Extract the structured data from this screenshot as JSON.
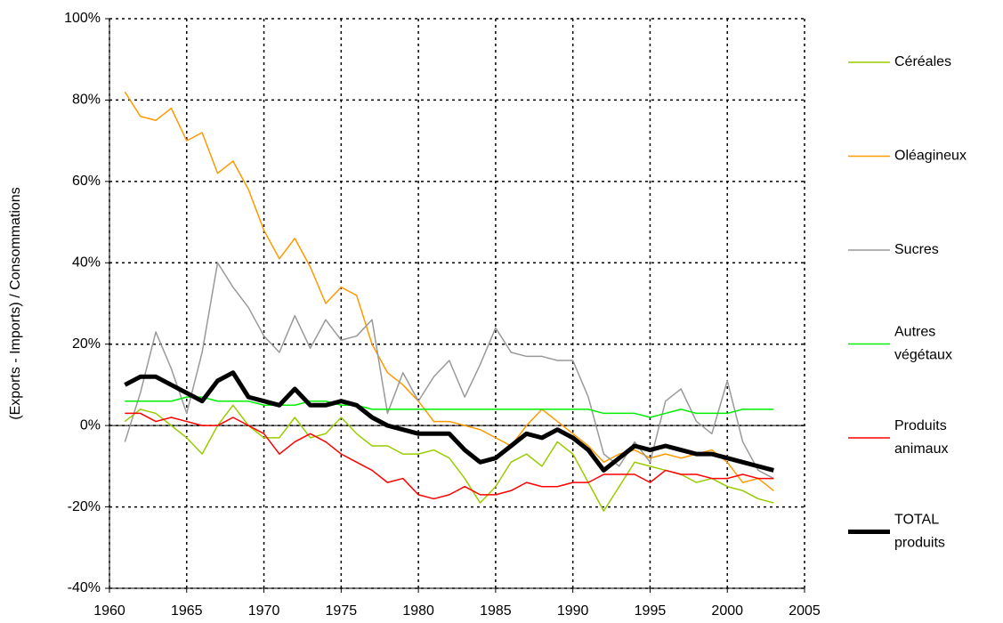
{
  "chart_data": {
    "type": "line",
    "y_label": "(Exports - Imports) / Consommations",
    "x": [
      1961,
      1962,
      1963,
      1964,
      1965,
      1966,
      1967,
      1968,
      1969,
      1970,
      1971,
      1972,
      1973,
      1974,
      1975,
      1976,
      1977,
      1978,
      1979,
      1980,
      1981,
      1982,
      1983,
      1984,
      1985,
      1986,
      1987,
      1988,
      1989,
      1990,
      1991,
      1992,
      1993,
      1994,
      1995,
      1996,
      1997,
      1998,
      1999,
      2000,
      2001,
      2002,
      2003
    ],
    "series": [
      {
        "name": "Céréales",
        "color": "#99cc00",
        "width": 1.5,
        "values": [
          1,
          4,
          3,
          0,
          -3,
          -7,
          0,
          5,
          0,
          -3,
          -3,
          2,
          -3,
          -2,
          2,
          -2,
          -5,
          -5,
          -7,
          -7,
          -6,
          -8,
          -13,
          -19,
          -15,
          -9,
          -7,
          -10,
          -4,
          -7,
          -14,
          -21,
          -15,
          -9,
          -10,
          -11,
          -12,
          -14,
          -13,
          -15,
          -16,
          -18,
          -19
        ]
      },
      {
        "name": "Oléagineux",
        "color": "#ff9900",
        "width": 1.5,
        "values": [
          82,
          76,
          75,
          78,
          70,
          72,
          62,
          65,
          58,
          48,
          41,
          46,
          39,
          30,
          34,
          32,
          20,
          13,
          10,
          6,
          1,
          1,
          0,
          -1,
          -3,
          -5,
          0,
          4,
          1,
          -2,
          -5,
          -9,
          -7,
          -6,
          -8,
          -7,
          -8,
          -7,
          -6,
          -9,
          -14,
          -13,
          -16
        ]
      },
      {
        "name": "Sucres",
        "color": "#999999",
        "width": 1.5,
        "values": [
          -4,
          8,
          23,
          14,
          3,
          18,
          40,
          34,
          29,
          22,
          18,
          27,
          19,
          26,
          21,
          22,
          26,
          3,
          13,
          6,
          12,
          16,
          7,
          15,
          24,
          18,
          17,
          17,
          16,
          16,
          7,
          -7,
          -10,
          -4,
          -9,
          6,
          9,
          1,
          -2,
          11,
          -4,
          -11,
          -13
        ]
      },
      {
        "name": "Autres végétaux",
        "color": "#00ee00",
        "width": 1.5,
        "values": [
          6,
          6,
          6,
          6,
          7,
          7,
          6,
          6,
          6,
          5,
          5,
          5,
          6,
          6,
          5,
          5,
          4,
          4,
          4,
          4,
          4,
          4,
          4,
          4,
          4,
          4,
          4,
          4,
          4,
          4,
          4,
          3,
          3,
          3,
          2,
          3,
          4,
          3,
          3,
          3,
          4,
          4,
          4
        ]
      },
      {
        "name": "Produits animaux",
        "color": "#ff0000",
        "width": 1.5,
        "values": [
          3,
          3,
          1,
          2,
          1,
          0,
          0,
          2,
          0,
          -2,
          -7,
          -4,
          -2,
          -4,
          -7,
          -9,
          -11,
          -14,
          -13,
          -17,
          -18,
          -17,
          -15,
          -17,
          -17,
          -16,
          -14,
          -15,
          -15,
          -14,
          -14,
          -12,
          -12,
          -12,
          -14,
          -11,
          -12,
          -12,
          -13,
          -13,
          -12,
          -13,
          -13
        ]
      },
      {
        "name": "TOTAL produits",
        "color": "#000000",
        "width": 5,
        "values": [
          10,
          12,
          12,
          10,
          8,
          6,
          11,
          13,
          7,
          6,
          5,
          9,
          5,
          5,
          6,
          5,
          2,
          0,
          -1,
          -2,
          -2,
          -2,
          -6,
          -9,
          -8,
          -5,
          -2,
          -3,
          -1,
          -3,
          -6,
          -11,
          -8,
          -5,
          -6,
          -5,
          -6,
          -7,
          -7,
          -8,
          -9,
          -10,
          -11
        ]
      }
    ],
    "xlim": [
      1960,
      2005
    ],
    "xticks": [
      1960,
      1965,
      1970,
      1975,
      1980,
      1985,
      1990,
      1995,
      2000,
      2005
    ],
    "ylim": [
      -40,
      100
    ],
    "yticks": [
      {
        "value": -40,
        "label": "-40%"
      },
      {
        "value": -20,
        "label": "-20%"
      },
      {
        "value": 0,
        "label": "0%"
      },
      {
        "value": 20,
        "label": "20%"
      },
      {
        "value": 40,
        "label": "40%"
      },
      {
        "value": 60,
        "label": "60%"
      },
      {
        "value": 80,
        "label": "80%"
      },
      {
        "value": 100,
        "label": "100%"
      }
    ],
    "grid": true,
    "legend": "right"
  }
}
